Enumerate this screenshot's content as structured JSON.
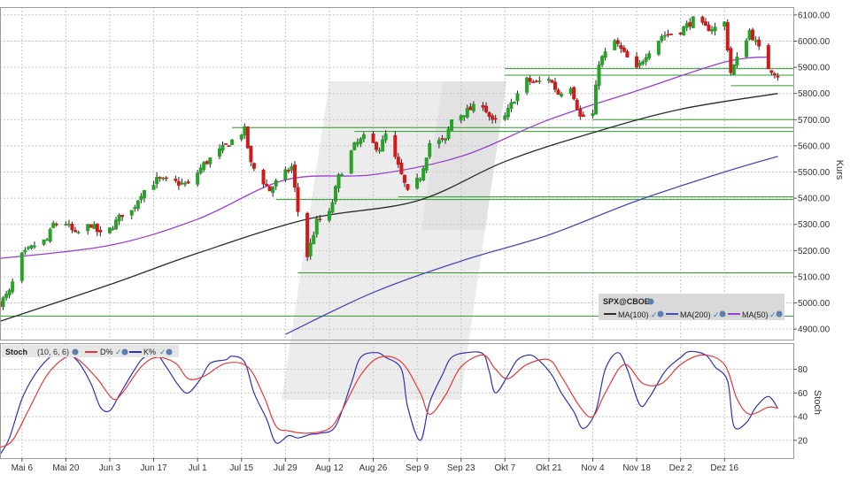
{
  "colors": {
    "background": "#ffffff",
    "grid": "#c8c8c8",
    "axis": "#555555",
    "candle_up": "#27a327",
    "candle_down": "#d01b1b",
    "wick": "#222222",
    "ma50": "#9a3fd0",
    "ma100": "#2b2b2b",
    "ma200": "#4a49b8",
    "hline": "#2e9a2e",
    "d_line": "#e23a3a",
    "k_line": "#3232b0",
    "legend_bg": "#d6d6d6",
    "watermark": "#e9e9e9"
  },
  "chart_data": [
    {
      "type": "candlestick",
      "symbol": "SPX@CBOE",
      "ylabel": "Kurs",
      "ylim": [
        4860,
        6130
      ],
      "yticks": [
        4900,
        5000,
        5100,
        5200,
        5300,
        5400,
        5500,
        5600,
        5700,
        5800,
        5900,
        6000,
        6100
      ],
      "ytick_labels": [
        "4900.00",
        "5000.00",
        "5100.00",
        "5200.00",
        "5300.00",
        "5400.00",
        "5500.00",
        "5600.00",
        "5700.00",
        "5800.00",
        "5900.00",
        "6000.00",
        "6100.00"
      ],
      "x_start": "2024-04-29",
      "x_end": "2025-01-03",
      "xticks": [
        "2024-05-06",
        "2024-05-20",
        "2024-06-03",
        "2024-06-17",
        "2024-07-01",
        "2024-07-15",
        "2024-07-29",
        "2024-08-12",
        "2024-08-26",
        "2024-09-09",
        "2024-09-23",
        "2024-10-07",
        "2024-10-21",
        "2024-11-04",
        "2024-11-18",
        "2024-12-02",
        "2024-12-16"
      ],
      "xtick_labels": [
        "Mai 6",
        "Mai 20",
        "Jun 3",
        "Jun 17",
        "Jul 1",
        "Jul 15",
        "Jul 29",
        "Aug 12",
        "Aug 26",
        "Sep 9",
        "Sep 23",
        "Okt 7",
        "Okt 21",
        "Nov 4",
        "Nov 18",
        "Dez 2",
        "Dez 16"
      ],
      "grid": true,
      "close_path": [
        [
          "2024-04-29",
          5000
        ],
        [
          "2024-05-02",
          5040
        ],
        [
          "2024-05-06",
          5180
        ],
        [
          "2024-05-10",
          5220
        ],
        [
          "2024-05-14",
          5240
        ],
        [
          "2024-05-16",
          5300
        ],
        [
          "2024-05-20",
          5305
        ],
        [
          "2024-05-23",
          5260
        ],
        [
          "2024-05-28",
          5300
        ],
        [
          "2024-05-31",
          5260
        ],
        [
          "2024-06-03",
          5280
        ],
        [
          "2024-06-07",
          5340
        ],
        [
          "2024-06-10",
          5350
        ],
        [
          "2024-06-13",
          5420
        ],
        [
          "2024-06-18",
          5470
        ],
        [
          "2024-06-24",
          5460
        ],
        [
          "2024-06-28",
          5450
        ],
        [
          "2024-07-03",
          5530
        ],
        [
          "2024-07-08",
          5580
        ],
        [
          "2024-07-12",
          5620
        ],
        [
          "2024-07-16",
          5660
        ],
        [
          "2024-07-18",
          5530
        ],
        [
          "2024-07-24",
          5430
        ],
        [
          "2024-07-26",
          5460
        ],
        [
          "2024-07-31",
          5520
        ],
        [
          "2024-08-02",
          5350
        ],
        [
          "2024-08-05",
          5180
        ],
        [
          "2024-08-08",
          5310
        ],
        [
          "2024-08-12",
          5340
        ],
        [
          "2024-08-15",
          5480
        ],
        [
          "2024-08-20",
          5600
        ],
        [
          "2024-08-23",
          5630
        ],
        [
          "2024-08-28",
          5590
        ],
        [
          "2024-08-30",
          5640
        ],
        [
          "2024-09-03",
          5520
        ],
        [
          "2024-09-06",
          5420
        ],
        [
          "2024-09-10",
          5480
        ],
        [
          "2024-09-13",
          5610
        ],
        [
          "2024-09-18",
          5620
        ],
        [
          "2024-09-20",
          5700
        ],
        [
          "2024-09-26",
          5740
        ],
        [
          "2024-09-30",
          5760
        ],
        [
          "2024-10-03",
          5690
        ],
        [
          "2024-10-07",
          5710
        ],
        [
          "2024-10-10",
          5780
        ],
        [
          "2024-10-14",
          5850
        ],
        [
          "2024-10-17",
          5840
        ],
        [
          "2024-10-21",
          5860
        ],
        [
          "2024-10-24",
          5800
        ],
        [
          "2024-10-28",
          5830
        ],
        [
          "2024-10-31",
          5710
        ],
        [
          "2024-11-04",
          5720
        ],
        [
          "2024-11-06",
          5920
        ],
        [
          "2024-11-11",
          6000
        ],
        [
          "2024-11-14",
          5950
        ],
        [
          "2024-11-18",
          5890
        ],
        [
          "2024-11-21",
          5950
        ],
        [
          "2024-11-26",
          6020
        ],
        [
          "2024-12-02",
          6040
        ],
        [
          "2024-12-06",
          6080
        ],
        [
          "2024-12-10",
          6050
        ],
        [
          "2024-12-13",
          6050
        ],
        [
          "2024-12-16",
          6070
        ],
        [
          "2024-12-18",
          5880
        ],
        [
          "2024-12-20",
          5930
        ],
        [
          "2024-12-24",
          6040
        ],
        [
          "2024-12-27",
          5970
        ],
        [
          "2024-12-30",
          5900
        ],
        [
          "2025-01-02",
          5870
        ]
      ],
      "moving_averages": [
        {
          "name": "MA(50)",
          "points": [
            [
              "2024-04-29",
              5170
            ],
            [
              "2024-06-03",
              5220
            ],
            [
              "2024-07-01",
              5320
            ],
            [
              "2024-07-29",
              5470
            ],
            [
              "2024-08-26",
              5490
            ],
            [
              "2024-09-23",
              5560
            ],
            [
              "2024-10-21",
              5700
            ],
            [
              "2024-11-18",
              5810
            ],
            [
              "2024-12-16",
              5920
            ],
            [
              "2024-12-30",
              5940
            ]
          ]
        },
        {
          "name": "MA(100)",
          "points": [
            [
              "2024-04-29",
              4930
            ],
            [
              "2024-06-03",
              5070
            ],
            [
              "2024-07-01",
              5190
            ],
            [
              "2024-08-05",
              5320
            ],
            [
              "2024-09-09",
              5390
            ],
            [
              "2024-10-07",
              5540
            ],
            [
              "2024-11-04",
              5650
            ],
            [
              "2024-12-02",
              5740
            ],
            [
              "2025-01-02",
              5800
            ]
          ]
        },
        {
          "name": "MA(200)",
          "points": [
            [
              "2024-07-29",
              4880
            ],
            [
              "2024-08-26",
              5040
            ],
            [
              "2024-09-23",
              5160
            ],
            [
              "2024-10-21",
              5260
            ],
            [
              "2024-11-18",
              5390
            ],
            [
              "2024-12-16",
              5500
            ],
            [
              "2025-01-02",
              5560
            ]
          ]
        }
      ],
      "horizontal_lines": [
        {
          "value": 5895,
          "from": "2024-10-07"
        },
        {
          "value": 5870,
          "from": "2024-10-07"
        },
        {
          "value": 5830,
          "from": "2024-12-18"
        },
        {
          "value": 5700,
          "from": "2024-11-04"
        },
        {
          "value": 5670,
          "from": "2024-07-12"
        },
        {
          "value": 5655,
          "from": "2024-08-20"
        },
        {
          "value": 5405,
          "from": "2024-09-03"
        },
        {
          "value": 5395,
          "from": "2024-07-26"
        },
        {
          "value": 5115,
          "from": "2024-08-02"
        },
        {
          "value": 4950,
          "from": "2024-04-29"
        }
      ],
      "legend": {
        "title": "SPX@CBOE",
        "items": [
          {
            "label": "MA(100)",
            "color": "#2b2b2b"
          },
          {
            "label": "MA(200)",
            "color": "#4a49b8"
          },
          {
            "label": "MA(50)",
            "color": "#9a3fd0"
          }
        ],
        "position": "bottom-right"
      }
    },
    {
      "type": "line",
      "title": "Stoch",
      "params": "(10, 6, 6)",
      "ylabel": "Stoch",
      "ylim": [
        5,
        102
      ],
      "yticks": [
        20,
        40,
        60,
        80
      ],
      "ytick_labels": [
        "20",
        "40",
        "60",
        "80"
      ],
      "legend_items": [
        "D%",
        "K%"
      ],
      "series": [
        {
          "name": "K%",
          "values": [
            [
              "2024-04-29",
              8
            ],
            [
              "2024-05-02",
              22
            ],
            [
              "2024-05-06",
              55
            ],
            [
              "2024-05-10",
              75
            ],
            [
              "2024-05-14",
              88
            ],
            [
              "2024-05-17",
              93
            ],
            [
              "2024-05-21",
              92
            ],
            [
              "2024-05-24",
              86
            ],
            [
              "2024-05-28",
              68
            ],
            [
              "2024-05-31",
              48
            ],
            [
              "2024-06-03",
              45
            ],
            [
              "2024-06-06",
              58
            ],
            [
              "2024-06-11",
              80
            ],
            [
              "2024-06-14",
              90
            ],
            [
              "2024-06-18",
              92
            ],
            [
              "2024-06-21",
              82
            ],
            [
              "2024-06-25",
              66
            ],
            [
              "2024-06-28",
              60
            ],
            [
              "2024-07-02",
              72
            ],
            [
              "2024-07-05",
              85
            ],
            [
              "2024-07-10",
              88
            ],
            [
              "2024-07-12",
              91
            ],
            [
              "2024-07-16",
              86
            ],
            [
              "2024-07-19",
              60
            ],
            [
              "2024-07-23",
              38
            ],
            [
              "2024-07-26",
              18
            ],
            [
              "2024-07-30",
              24
            ],
            [
              "2024-08-02",
              22
            ],
            [
              "2024-08-06",
              25
            ],
            [
              "2024-08-09",
              26
            ],
            [
              "2024-08-14",
              32
            ],
            [
              "2024-08-19",
              68
            ],
            [
              "2024-08-22",
              90
            ],
            [
              "2024-08-27",
              94
            ],
            [
              "2024-08-30",
              90
            ],
            [
              "2024-09-04",
              80
            ],
            [
              "2024-09-06",
              48
            ],
            [
              "2024-09-10",
              20
            ],
            [
              "2024-09-13",
              52
            ],
            [
              "2024-09-17",
              75
            ],
            [
              "2024-09-20",
              90
            ],
            [
              "2024-09-25",
              94
            ],
            [
              "2024-09-30",
              93
            ],
            [
              "2024-10-02",
              78
            ],
            [
              "2024-10-04",
              60
            ],
            [
              "2024-10-08",
              75
            ],
            [
              "2024-10-11",
              88
            ],
            [
              "2024-10-15",
              92
            ],
            [
              "2024-10-18",
              87
            ],
            [
              "2024-10-22",
              75
            ],
            [
              "2024-10-25",
              60
            ],
            [
              "2024-10-29",
              44
            ],
            [
              "2024-11-01",
              30
            ],
            [
              "2024-11-05",
              45
            ],
            [
              "2024-11-08",
              80
            ],
            [
              "2024-11-12",
              94
            ],
            [
              "2024-11-15",
              80
            ],
            [
              "2024-11-19",
              50
            ],
            [
              "2024-11-22",
              56
            ],
            [
              "2024-11-27",
              78
            ],
            [
              "2024-12-02",
              90
            ],
            [
              "2024-12-05",
              95
            ],
            [
              "2024-12-10",
              92
            ],
            [
              "2024-12-13",
              82
            ],
            [
              "2024-12-17",
              70
            ],
            [
              "2024-12-19",
              32
            ],
            [
              "2024-12-23",
              35
            ],
            [
              "2024-12-26",
              48
            ],
            [
              "2024-12-30",
              57
            ],
            [
              "2025-01-02",
              47
            ]
          ]
        },
        {
          "name": "D%",
          "values": [
            [
              "2024-04-29",
              14
            ],
            [
              "2024-05-03",
              20
            ],
            [
              "2024-05-08",
              45
            ],
            [
              "2024-05-14",
              75
            ],
            [
              "2024-05-20",
              90
            ],
            [
              "2024-05-24",
              88
            ],
            [
              "2024-05-30",
              72
            ],
            [
              "2024-06-04",
              55
            ],
            [
              "2024-06-07",
              60
            ],
            [
              "2024-06-13",
              82
            ],
            [
              "2024-06-18",
              90
            ],
            [
              "2024-06-24",
              85
            ],
            [
              "2024-06-28",
              72
            ],
            [
              "2024-07-03",
              74
            ],
            [
              "2024-07-10",
              85
            ],
            [
              "2024-07-17",
              82
            ],
            [
              "2024-07-22",
              58
            ],
            [
              "2024-07-26",
              32
            ],
            [
              "2024-07-30",
              28
            ],
            [
              "2024-08-05",
              26
            ],
            [
              "2024-08-12",
              30
            ],
            [
              "2024-08-16",
              45
            ],
            [
              "2024-08-22",
              75
            ],
            [
              "2024-08-28",
              90
            ],
            [
              "2024-09-04",
              86
            ],
            [
              "2024-09-10",
              60
            ],
            [
              "2024-09-13",
              42
            ],
            [
              "2024-09-18",
              58
            ],
            [
              "2024-09-23",
              82
            ],
            [
              "2024-09-30",
              92
            ],
            [
              "2024-10-04",
              80
            ],
            [
              "2024-10-08",
              72
            ],
            [
              "2024-10-14",
              84
            ],
            [
              "2024-10-21",
              88
            ],
            [
              "2024-10-25",
              74
            ],
            [
              "2024-10-31",
              48
            ],
            [
              "2024-11-04",
              40
            ],
            [
              "2024-11-08",
              60
            ],
            [
              "2024-11-14",
              84
            ],
            [
              "2024-11-20",
              68
            ],
            [
              "2024-11-26",
              68
            ],
            [
              "2024-12-02",
              84
            ],
            [
              "2024-12-09",
              92
            ],
            [
              "2024-12-16",
              84
            ],
            [
              "2024-12-20",
              55
            ],
            [
              "2024-12-24",
              42
            ],
            [
              "2024-12-30",
              48
            ],
            [
              "2025-01-02",
              47
            ]
          ]
        }
      ]
    }
  ]
}
